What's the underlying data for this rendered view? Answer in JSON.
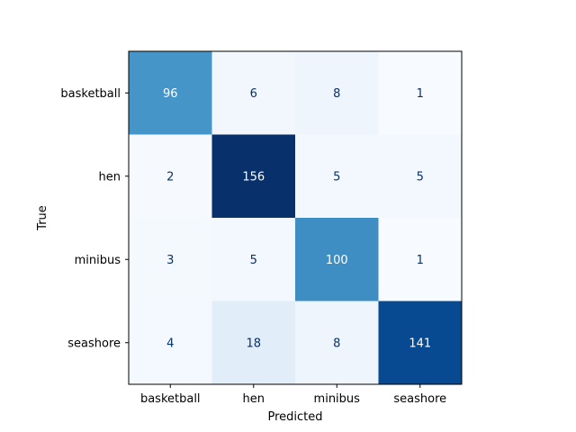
{
  "chart_data": {
    "type": "heatmap",
    "title": "",
    "xlabel": "Predicted",
    "ylabel": "True",
    "x_categories": [
      "basketball",
      "hen",
      "minibus",
      "seashore"
    ],
    "y_categories": [
      "basketball",
      "hen",
      "minibus",
      "seashore"
    ],
    "values": [
      [
        96,
        6,
        8,
        1
      ],
      [
        2,
        156,
        5,
        5
      ],
      [
        3,
        5,
        100,
        1
      ],
      [
        4,
        18,
        8,
        141
      ]
    ],
    "colormap": "Blues",
    "color_low": "#f7fbff",
    "color_high": "#08306b",
    "text_dark": "#08306b",
    "text_light": "#ffffff",
    "grid": false,
    "colorbar": false
  }
}
